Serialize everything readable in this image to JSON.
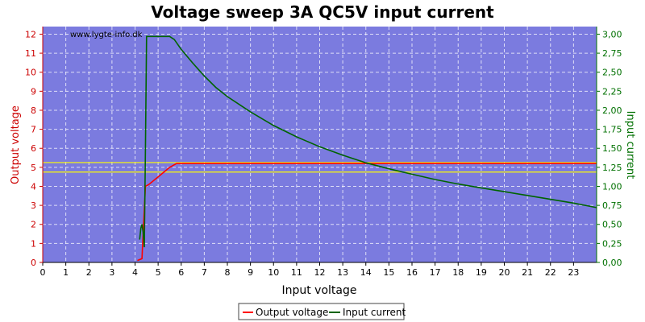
{
  "chart_data": {
    "type": "line",
    "title": "Voltage sweep 3A QC5V input current",
    "watermark": "www.lygte-info.dk",
    "xlabel": "Input voltage",
    "ylabel_left": "Output voltage",
    "ylabel_right": "Input current",
    "xlim": [
      0,
      24
    ],
    "ylim_left": [
      0,
      12.4
    ],
    "ylim_right": [
      0,
      3.1
    ],
    "x_ticks": [
      0,
      1,
      2,
      3,
      4,
      5,
      6,
      7,
      8,
      9,
      10,
      11,
      12,
      13,
      14,
      15,
      16,
      17,
      18,
      19,
      20,
      21,
      22,
      23
    ],
    "y_left_ticks": [
      0,
      1,
      2,
      3,
      4,
      5,
      6,
      7,
      8,
      9,
      10,
      11,
      12
    ],
    "y_right_ticks": [
      "0,00",
      "0,25",
      "0,50",
      "0,75",
      "1,00",
      "1,25",
      "1,50",
      "1,75",
      "2,00",
      "2,25",
      "2,50",
      "2,75",
      "3,00"
    ],
    "grid": true,
    "legend_position": "bottom",
    "colors": {
      "plot_background": "#7b7bdf",
      "output_voltage": "#ff0000",
      "input_current": "#006400",
      "reference_lines": "#ffff00",
      "left_axis": "#cc0000",
      "right_axis": "#007000"
    },
    "reference_lines_left": [
      4.75,
      5.25
    ],
    "series": [
      {
        "name": "Output voltage",
        "axis": "left",
        "points": [
          [
            4.1,
            0.1
          ],
          [
            4.3,
            0.2
          ],
          [
            4.35,
            1.5
          ],
          [
            4.4,
            2.8
          ],
          [
            4.45,
            4.0
          ],
          [
            4.6,
            4.1
          ],
          [
            5.0,
            4.5
          ],
          [
            5.5,
            5.0
          ],
          [
            5.8,
            5.2
          ],
          [
            6.5,
            5.2
          ],
          [
            10,
            5.2
          ],
          [
            15,
            5.2
          ],
          [
            20,
            5.2
          ],
          [
            24,
            5.2
          ]
        ]
      },
      {
        "name": "Input current",
        "axis": "right",
        "points": [
          [
            4.2,
            0.3
          ],
          [
            4.25,
            0.45
          ],
          [
            4.3,
            0.5
          ],
          [
            4.35,
            0.4
          ],
          [
            4.4,
            0.2
          ],
          [
            4.45,
            1.5
          ],
          [
            4.5,
            2.97
          ],
          [
            5.0,
            2.97
          ],
          [
            5.5,
            2.97
          ],
          [
            5.7,
            2.93
          ],
          [
            6,
            2.8
          ],
          [
            6.5,
            2.62
          ],
          [
            7,
            2.45
          ],
          [
            7.5,
            2.3
          ],
          [
            8,
            2.18
          ],
          [
            9,
            1.98
          ],
          [
            10,
            1.8
          ],
          [
            11,
            1.65
          ],
          [
            12,
            1.52
          ],
          [
            13,
            1.41
          ],
          [
            14,
            1.31
          ],
          [
            15,
            1.23
          ],
          [
            16,
            1.16
          ],
          [
            17,
            1.09
          ],
          [
            18,
            1.03
          ],
          [
            19,
            0.98
          ],
          [
            20,
            0.93
          ],
          [
            21,
            0.88
          ],
          [
            22,
            0.83
          ],
          [
            23,
            0.78
          ],
          [
            24,
            0.72
          ]
        ]
      }
    ]
  }
}
